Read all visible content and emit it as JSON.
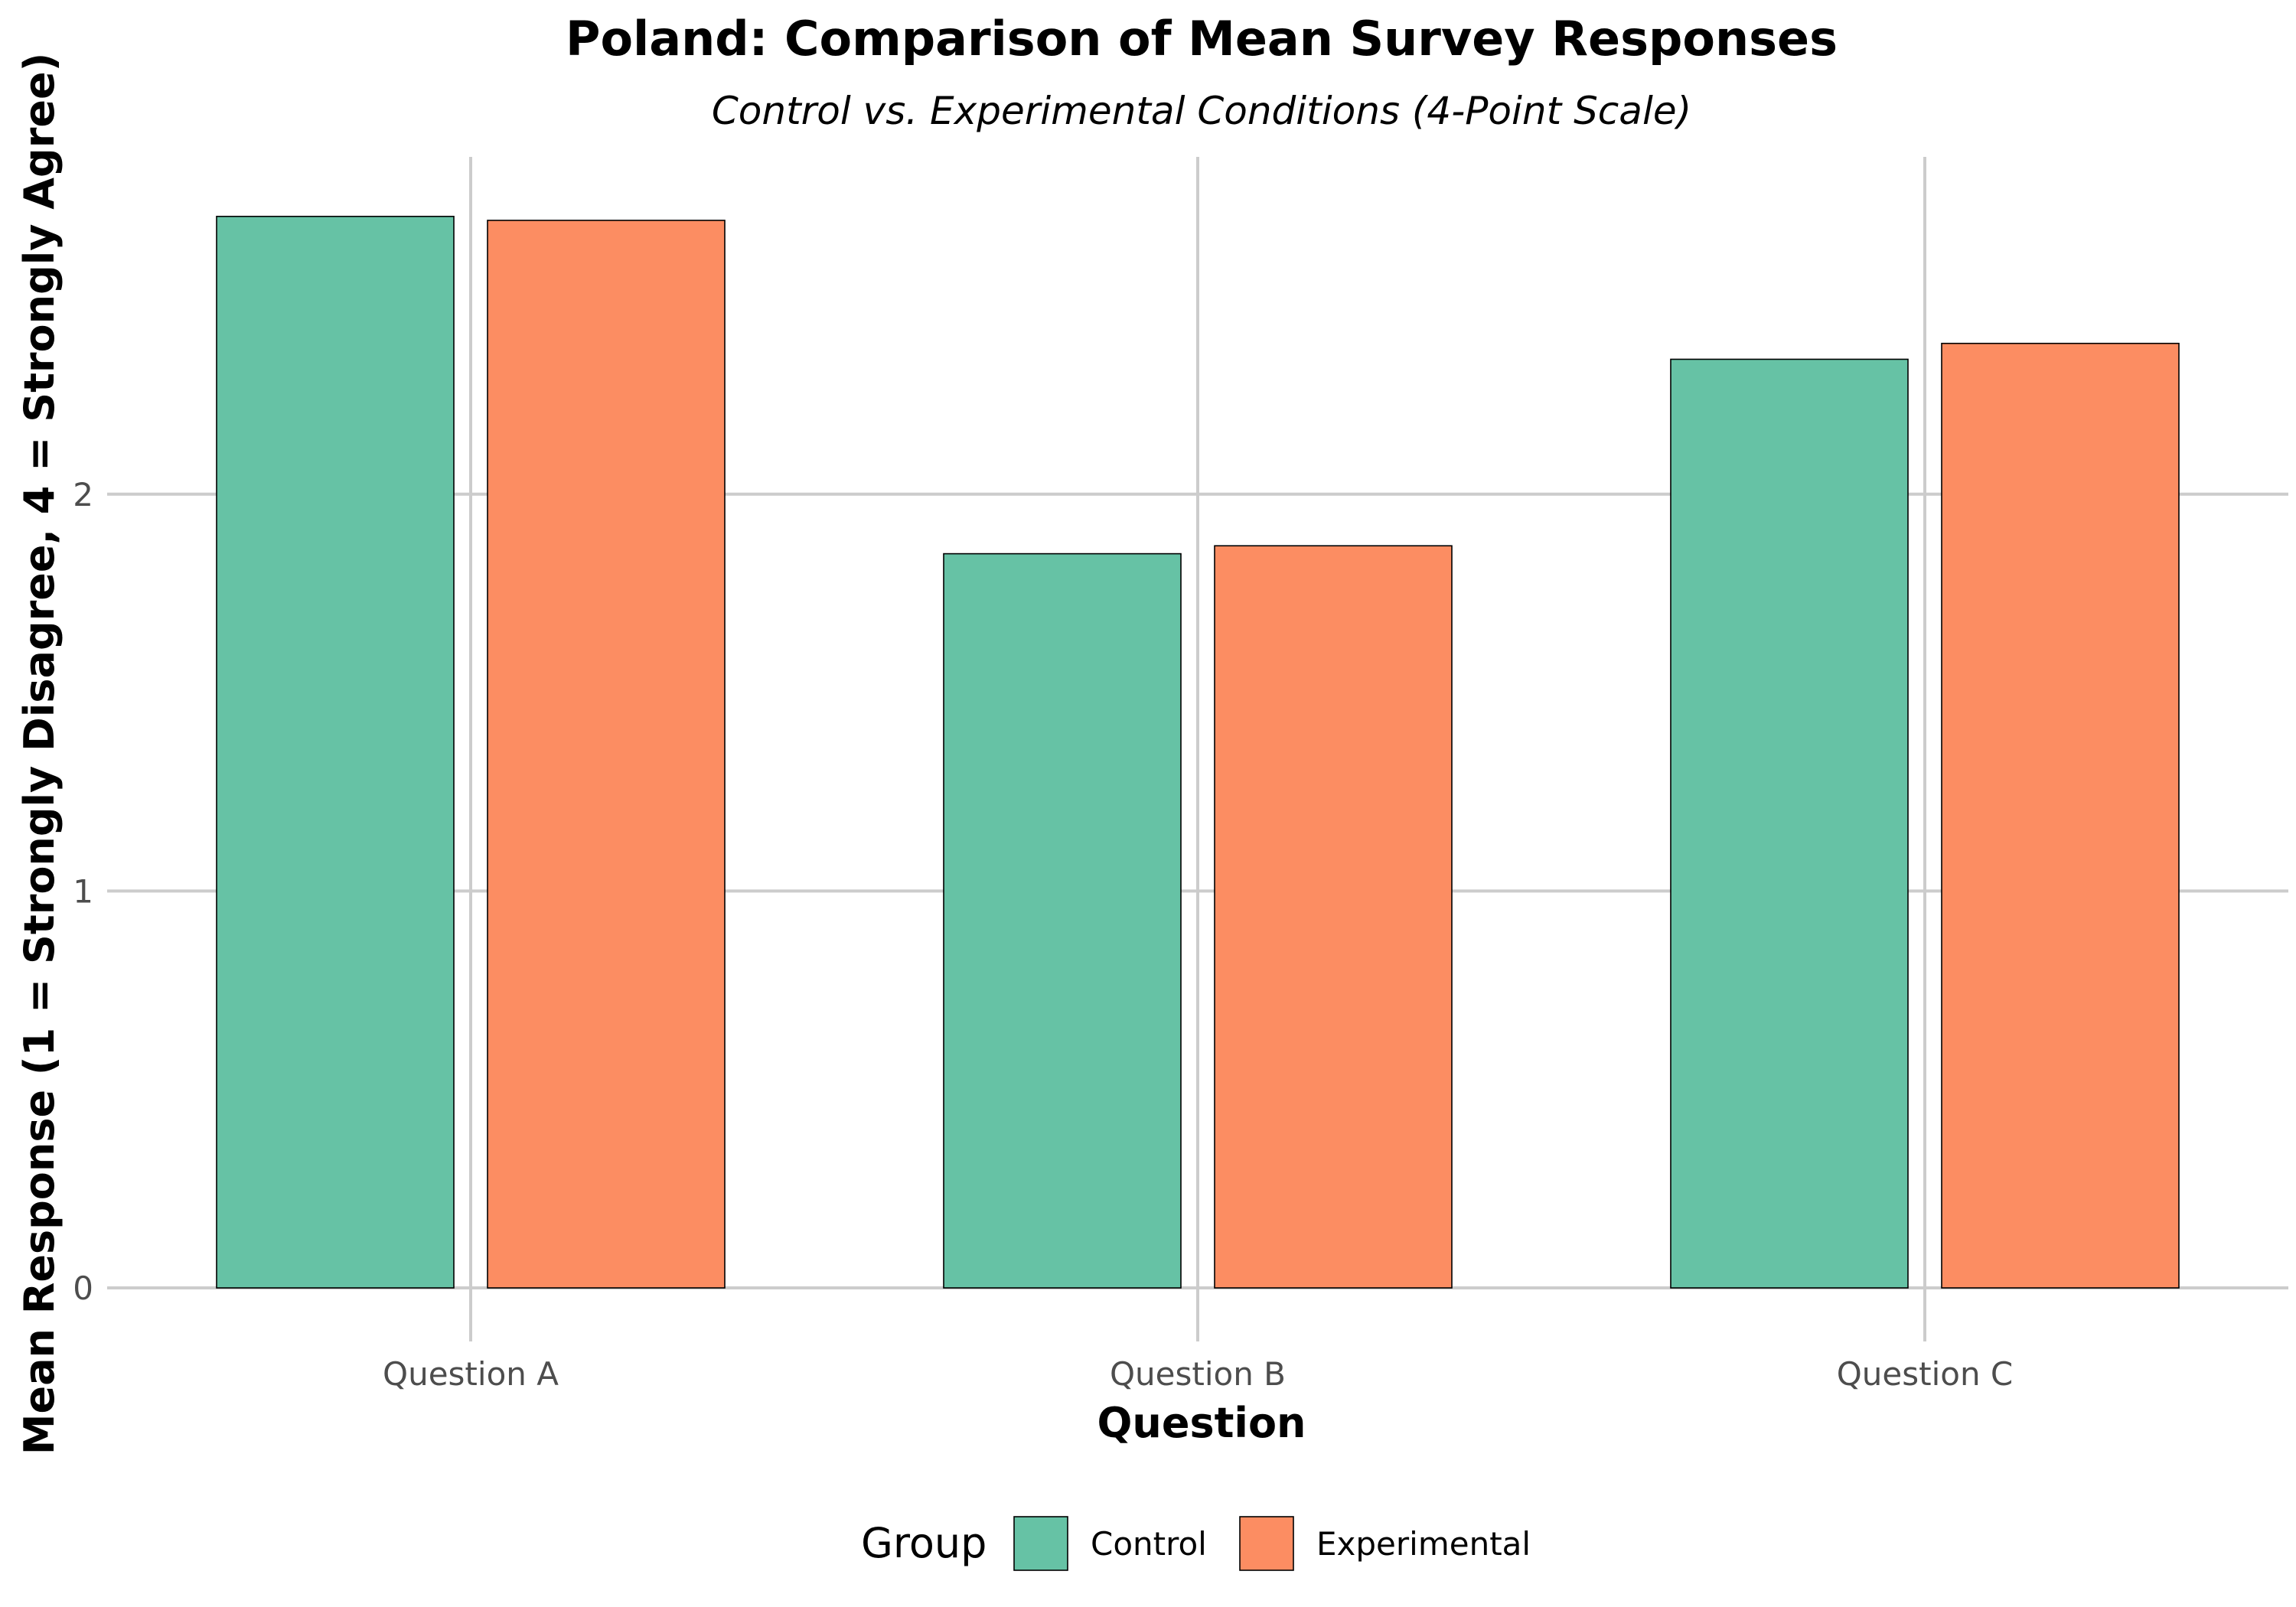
{
  "chart_data": {
    "type": "bar",
    "title": "Poland: Comparison of Mean Survey Responses",
    "subtitle": "Control vs. Experimental Conditions (4-Point Scale)",
    "xlabel": "Question",
    "ylabel": "Mean Response (1 = Strongly Disagree, 4 = Strongly Agree)",
    "categories": [
      "Question A",
      "Question B",
      "Question C"
    ],
    "series": [
      {
        "name": "Control",
        "color": "#66c2a5",
        "values": [
          2.7,
          1.85,
          2.34
        ]
      },
      {
        "name": "Experimental",
        "color": "#fc8d62",
        "values": [
          2.69,
          1.87,
          2.38
        ]
      }
    ],
    "ylim": [
      0,
      2.85
    ],
    "yticks": [
      0,
      1,
      2
    ],
    "grid": true,
    "legend": {
      "title": "Group",
      "position": "bottom"
    }
  }
}
